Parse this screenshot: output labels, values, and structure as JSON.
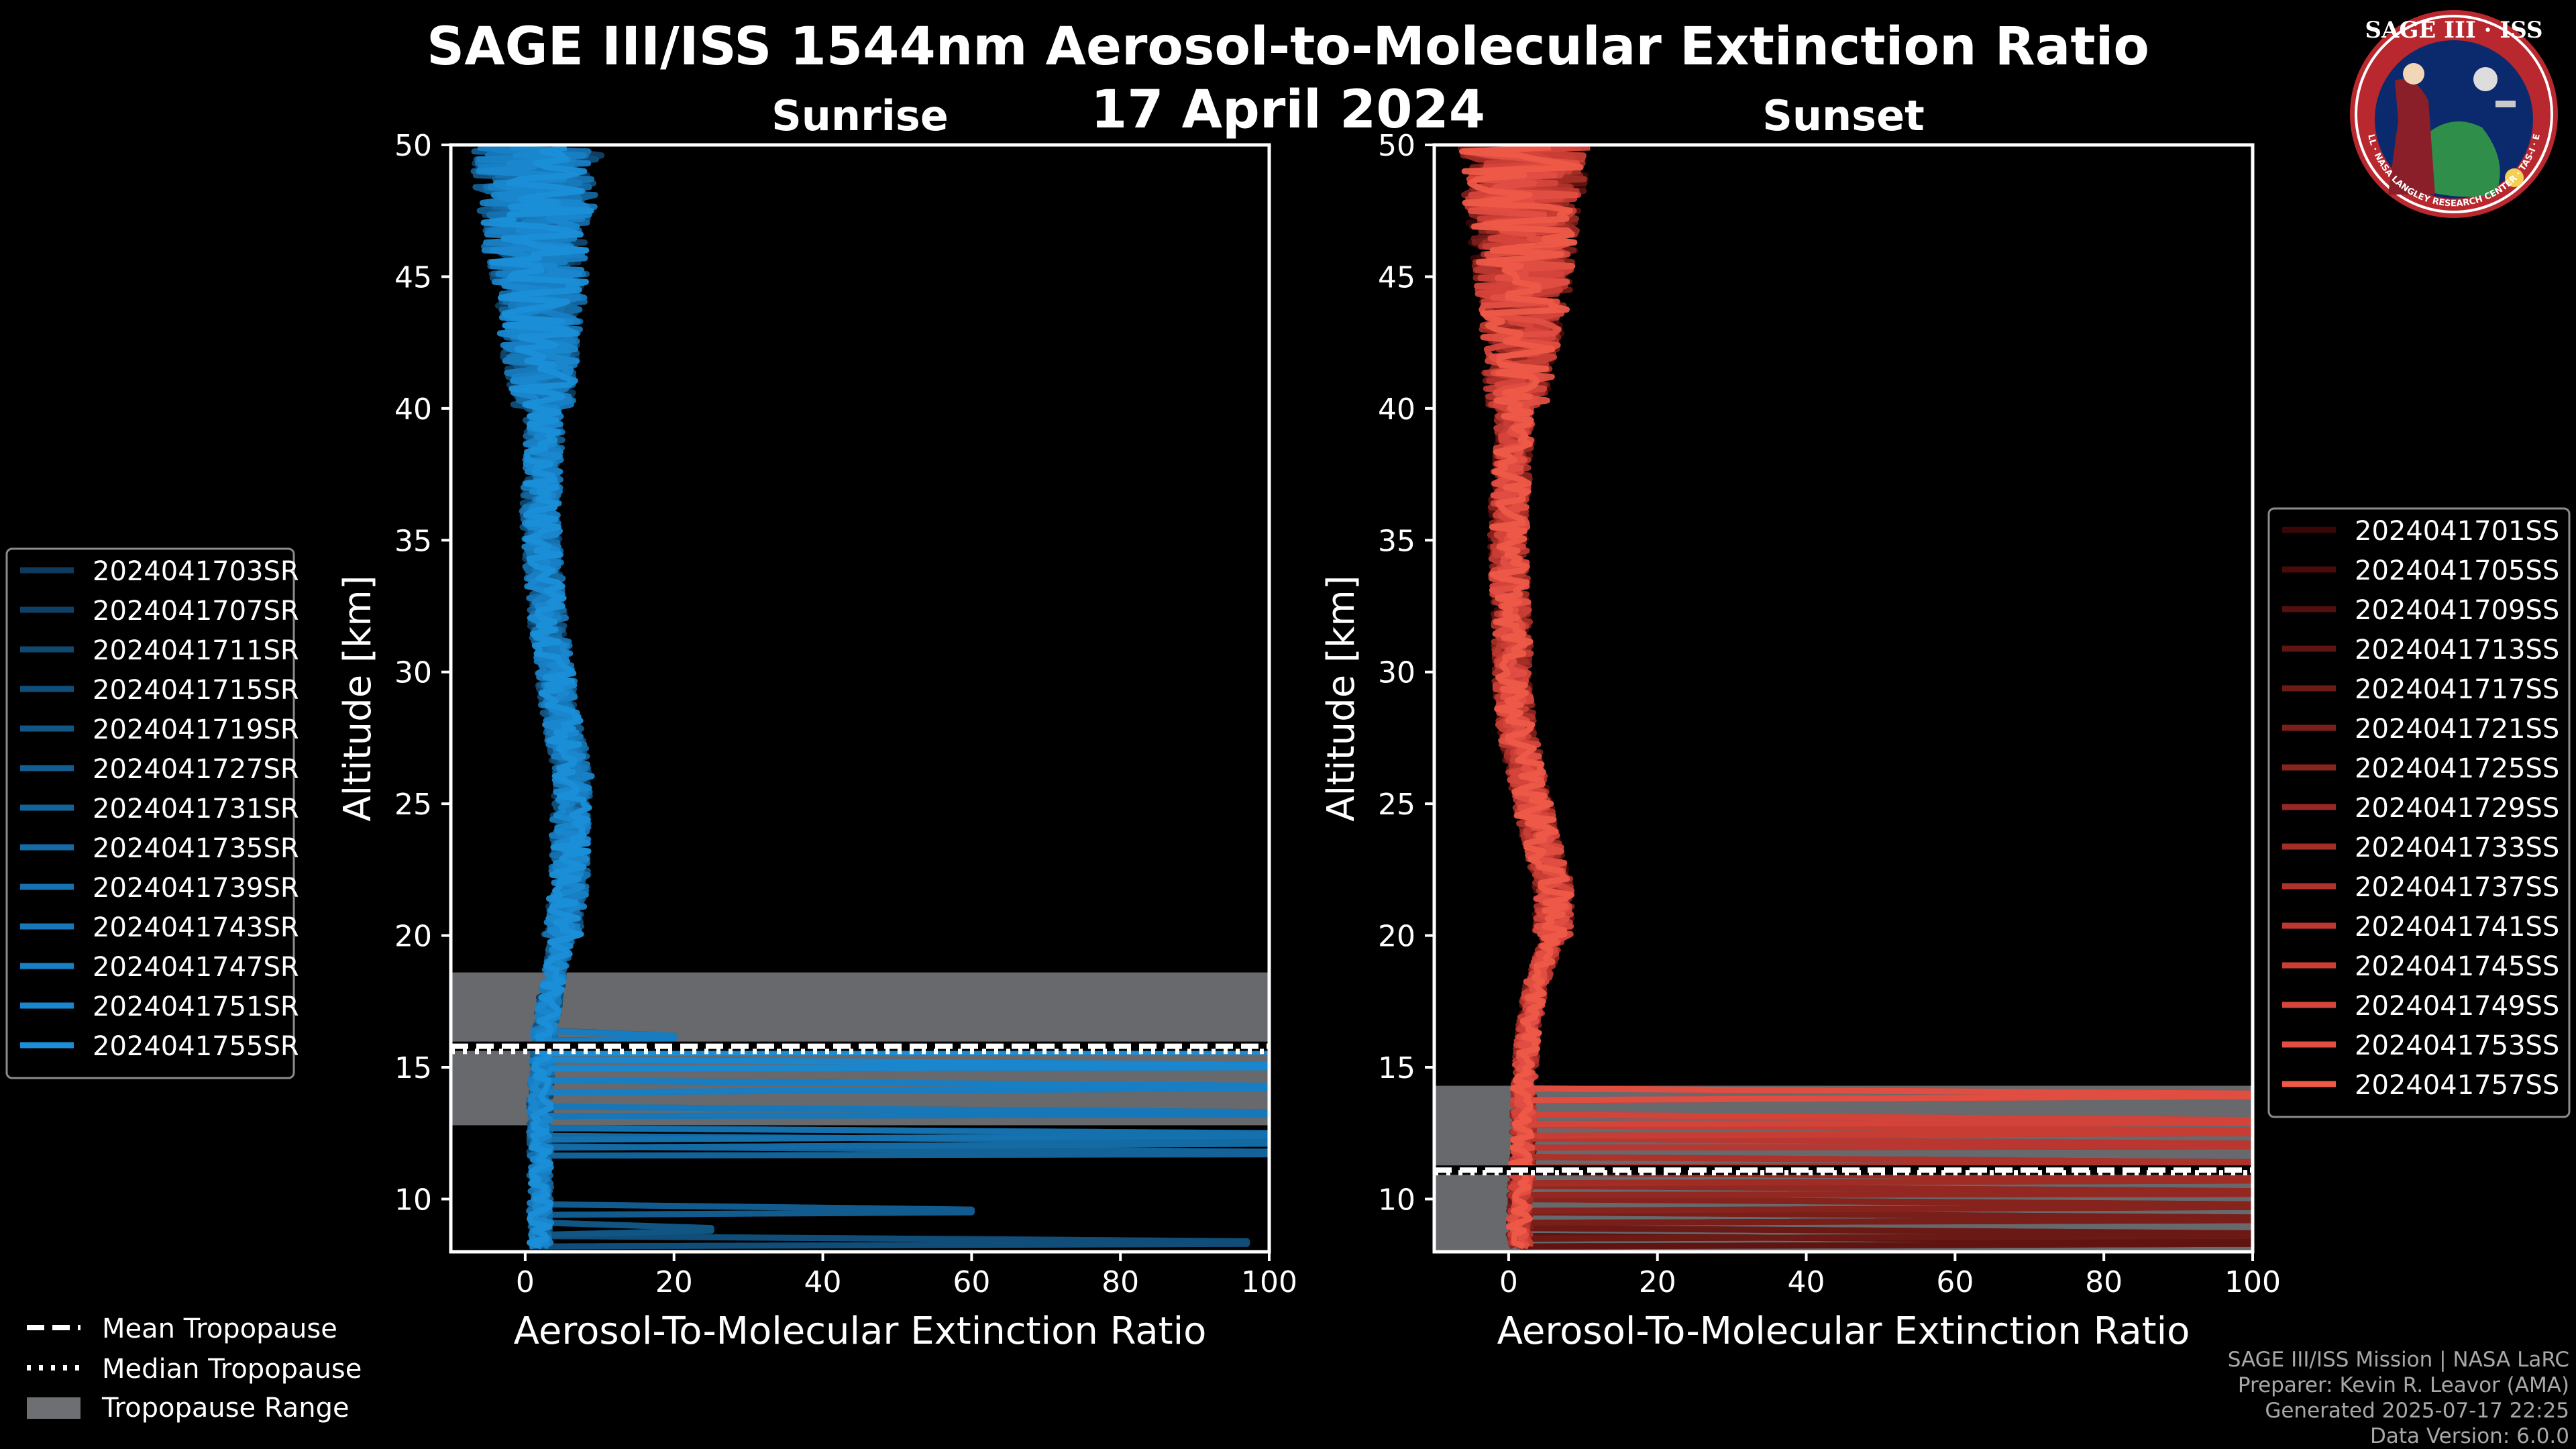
{
  "figure": {
    "title": "SAGE III/ISS 1544nm Aerosol-to-Molecular Extinction Ratio",
    "date": "17 April 2024"
  },
  "logo": {
    "name": "SAGE III · ISS",
    "tagline": "BALL · NASA LANGLEY RESEARCH CENTER · TAS-I · ESA"
  },
  "credits": {
    "line1": "SAGE III/ISS Mission | NASA LaRC",
    "line2": "Preparer: Kevin R. Leavor (AMA)",
    "line3": "Generated 2025-07-17 22:25",
    "line4": "Data Version: 6.0.0"
  },
  "common_legend": {
    "mean": "Mean Tropopause",
    "median": "Median Tropopause",
    "range": "Tropopause Range"
  },
  "colors": {
    "background": "#000000",
    "sunrise": "#1a8fd8",
    "sunset": "#ee5a48",
    "tropopause_range": "#6d6f73"
  },
  "chart_data": [
    {
      "type": "line",
      "title": "Sunrise",
      "xlabel": "Aerosol-To-Molecular Extinction Ratio",
      "ylabel": "Altitude [km]",
      "xlim": [
        -10,
        100
      ],
      "ylim": [
        8,
        50
      ],
      "xticks": [
        0,
        20,
        40,
        60,
        80,
        100
      ],
      "yticks": [
        10,
        15,
        20,
        25,
        30,
        35,
        40,
        45,
        50
      ],
      "tropopause": {
        "mean": 15.8,
        "median": 15.6,
        "range": [
          12.8,
          18.6
        ]
      },
      "series": [
        {
          "name": "2024041703SR",
          "color": "#0e3a5c"
        },
        {
          "name": "2024041707SR",
          "color": "#0f4166"
        },
        {
          "name": "2024041711SR",
          "color": "#104870"
        },
        {
          "name": "2024041715SR",
          "color": "#114f7b"
        },
        {
          "name": "2024041719SR",
          "color": "#125685"
        },
        {
          "name": "2024041727SR",
          "color": "#135d90"
        },
        {
          "name": "2024041731SR",
          "color": "#14649a"
        },
        {
          "name": "2024041735SR",
          "color": "#156ba5"
        },
        {
          "name": "2024041739SR",
          "color": "#1672b0"
        },
        {
          "name": "2024041743SR",
          "color": "#1779ba"
        },
        {
          "name": "2024041747SR",
          "color": "#1880c5"
        },
        {
          "name": "2024041751SR",
          "color": "#1987cf"
        },
        {
          "name": "2024041755SR",
          "color": "#1a8fd8"
        }
      ],
      "base_profile": [
        [
          8.5,
          2
        ],
        [
          10,
          2
        ],
        [
          12,
          2
        ],
        [
          14,
          2
        ],
        [
          16,
          2.5
        ],
        [
          18,
          3.5
        ],
        [
          20,
          5
        ],
        [
          22,
          6
        ],
        [
          24,
          6
        ],
        [
          26,
          6.5
        ],
        [
          28,
          5
        ],
        [
          30,
          4
        ],
        [
          32,
          3
        ],
        [
          34,
          2.5
        ],
        [
          36,
          2
        ],
        [
          38,
          2.5
        ],
        [
          40,
          2.5
        ],
        [
          42,
          2
        ],
        [
          44,
          2
        ],
        [
          46,
          1.5
        ],
        [
          48,
          1.5
        ],
        [
          50,
          1.5
        ]
      ],
      "spikes": [
        [
          8.3,
          97
        ],
        [
          8.8,
          25
        ],
        [
          9.5,
          60
        ],
        [
          11.7,
          100
        ],
        [
          12.1,
          100
        ],
        [
          12.4,
          100
        ],
        [
          13.2,
          100
        ],
        [
          14.2,
          100
        ],
        [
          15.0,
          100
        ],
        [
          15.6,
          100
        ],
        [
          16.1,
          20
        ]
      ]
    },
    {
      "type": "line",
      "title": "Sunset",
      "xlabel": "Aerosol-To-Molecular Extinction Ratio",
      "ylabel": "Altitude [km]",
      "xlim": [
        -10,
        100
      ],
      "ylim": [
        8,
        50
      ],
      "xticks": [
        0,
        20,
        40,
        60,
        80,
        100
      ],
      "yticks": [
        10,
        15,
        20,
        25,
        30,
        35,
        40,
        45,
        50
      ],
      "tropopause": {
        "mean": 11.1,
        "median": 11.0,
        "range": [
          8,
          14.3
        ]
      },
      "series": [
        {
          "name": "2024041701SS",
          "color": "#3a0707"
        },
        {
          "name": "2024041705SS",
          "color": "#470b0a"
        },
        {
          "name": "2024041709SS",
          "color": "#54100e"
        },
        {
          "name": "2024041713SS",
          "color": "#611512"
        },
        {
          "name": "2024041717SS",
          "color": "#6e1a16"
        },
        {
          "name": "2024041721SS",
          "color": "#7b1f1a"
        },
        {
          "name": "2024041725SS",
          "color": "#88241e"
        },
        {
          "name": "2024041729SS",
          "color": "#952922"
        },
        {
          "name": "2024041733SS",
          "color": "#a22e26"
        },
        {
          "name": "2024041737SS",
          "color": "#af332b"
        },
        {
          "name": "2024041741SS",
          "color": "#bc3830"
        },
        {
          "name": "2024041745SS",
          "color": "#c93e35"
        },
        {
          "name": "2024041749SS",
          "color": "#d6453b"
        },
        {
          "name": "2024041753SS",
          "color": "#e24e42"
        },
        {
          "name": "2024041757SS",
          "color": "#ee5a48"
        }
      ],
      "base_profile": [
        [
          8.5,
          1.5
        ],
        [
          10,
          1.5
        ],
        [
          12,
          2
        ],
        [
          14,
          2
        ],
        [
          16,
          2.5
        ],
        [
          18,
          3.5
        ],
        [
          20,
          6
        ],
        [
          22,
          6
        ],
        [
          24,
          4
        ],
        [
          26,
          2.5
        ],
        [
          28,
          1
        ],
        [
          30,
          0.5
        ],
        [
          32,
          0.5
        ],
        [
          34,
          0
        ],
        [
          36,
          0
        ],
        [
          38,
          0.5
        ],
        [
          40,
          1
        ],
        [
          42,
          1.5
        ],
        [
          44,
          2
        ],
        [
          46,
          2
        ],
        [
          48,
          2
        ],
        [
          50,
          2
        ]
      ],
      "spikes": [
        [
          8.3,
          100
        ],
        [
          8.6,
          100
        ],
        [
          9.2,
          100
        ],
        [
          9.7,
          100
        ],
        [
          10.2,
          100
        ],
        [
          10.7,
          100
        ],
        [
          11.3,
          100
        ],
        [
          12.0,
          100
        ],
        [
          12.5,
          100
        ],
        [
          12.9,
          100
        ],
        [
          13.9,
          100
        ]
      ]
    }
  ]
}
